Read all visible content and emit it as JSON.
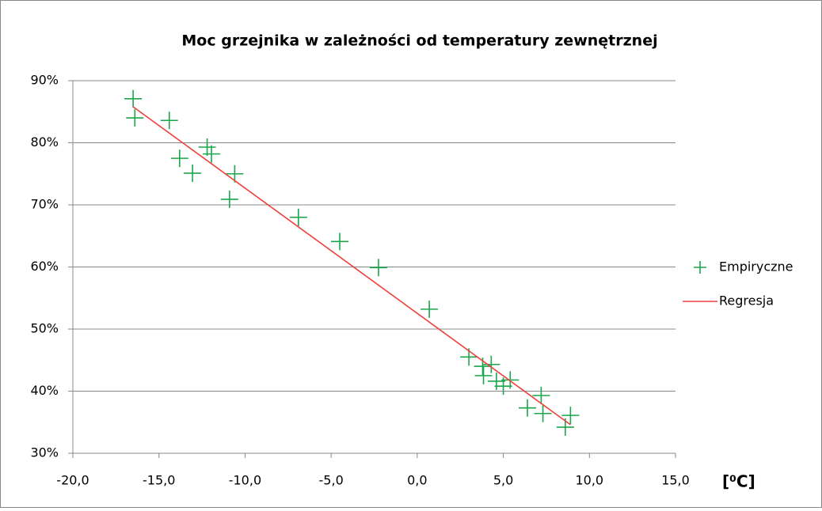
{
  "chart_data": {
    "type": "scatter",
    "title": "Moc grzejnika w zależności od temperatury zewnętrznej",
    "x_label": "[⁰C]",
    "xlim": [
      -20,
      15
    ],
    "xticks": [
      {
        "value": -20,
        "label": "-20,0"
      },
      {
        "value": -15,
        "label": "-15,0"
      },
      {
        "value": -10,
        "label": "-10,0"
      },
      {
        "value": -5,
        "label": "-5,0"
      },
      {
        "value": 0,
        "label": "0,0"
      },
      {
        "value": 5,
        "label": "5,0"
      },
      {
        "value": 10,
        "label": "10,0"
      },
      {
        "value": 15,
        "label": "15,0"
      }
    ],
    "ylim": [
      30,
      90
    ],
    "yticks": [
      {
        "value": 30,
        "label": "30%"
      },
      {
        "value": 40,
        "label": "40%"
      },
      {
        "value": 50,
        "label": "50%"
      },
      {
        "value": 60,
        "label": "60%"
      },
      {
        "value": 70,
        "label": "70%"
      },
      {
        "value": 80,
        "label": "80%"
      },
      {
        "value": 90,
        "label": "90%"
      }
    ],
    "grid": true,
    "legend": "right",
    "series": [
      {
        "name": "Empiryczne",
        "type": "scatter",
        "color": "#1aa64a",
        "x": [
          -16.5,
          -16.4,
          -14.4,
          -13.8,
          -13.05,
          -12.2,
          -11.95,
          -10.9,
          -10.6,
          -6.9,
          -4.5,
          -2.25,
          0.7,
          3.0,
          3.8,
          3.85,
          4.3,
          4.6,
          5.0,
          5.4,
          6.4,
          7.2,
          7.3,
          8.6,
          8.9
        ],
        "values": [
          87.1,
          84.0,
          83.6,
          77.5,
          75.1,
          79.3,
          78.2,
          70.9,
          75.0,
          68.0,
          64.1,
          59.9,
          53.2,
          45.5,
          44.0,
          42.5,
          44.3,
          41.6,
          40.8,
          41.8,
          37.3,
          39.3,
          36.4,
          34.2,
          36.1
        ]
      },
      {
        "name": "Regresja",
        "type": "line",
        "color": "#f0403c",
        "x": [
          -16.5,
          8.9
        ],
        "values": [
          85.8,
          34.6
        ]
      }
    ]
  }
}
